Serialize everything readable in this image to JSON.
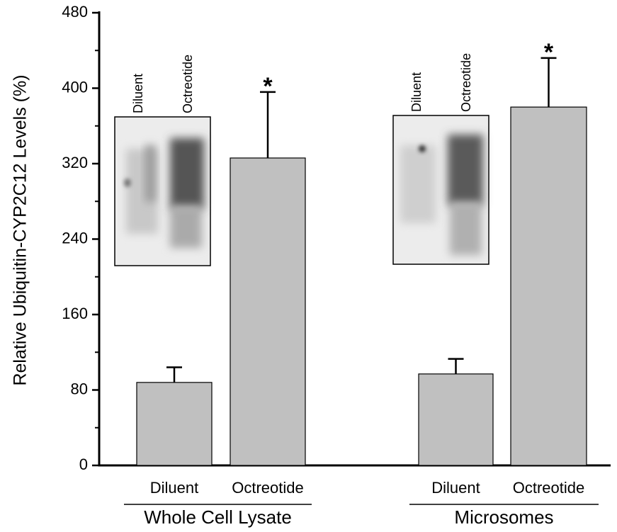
{
  "chart_data": {
    "type": "bar",
    "y_label": "Relative Ubiquitin-CYP2C12 Levels (%)",
    "ylim": [
      0,
      480
    ],
    "yticks": [
      0,
      80,
      160,
      240,
      320,
      400,
      480
    ],
    "minor_yticks": [
      40,
      120,
      200,
      280,
      360,
      440
    ],
    "color": "#c0c0c0",
    "groups": [
      {
        "name": "Whole Cell Lysate",
        "categories": [
          "Diluent",
          "Octreotide"
        ],
        "values": [
          88,
          326
        ],
        "errors": [
          16,
          70
        ],
        "significance": [
          null,
          "*"
        ],
        "inset_labels": [
          "Diluent",
          "Octreotide"
        ]
      },
      {
        "name": "Microsomes",
        "categories": [
          "Diluent",
          "Octreotide"
        ],
        "values": [
          97,
          380
        ],
        "errors": [
          16,
          52
        ],
        "significance": [
          null,
          "*"
        ],
        "inset_labels": [
          "Diluent",
          "Octreotide"
        ]
      }
    ]
  }
}
